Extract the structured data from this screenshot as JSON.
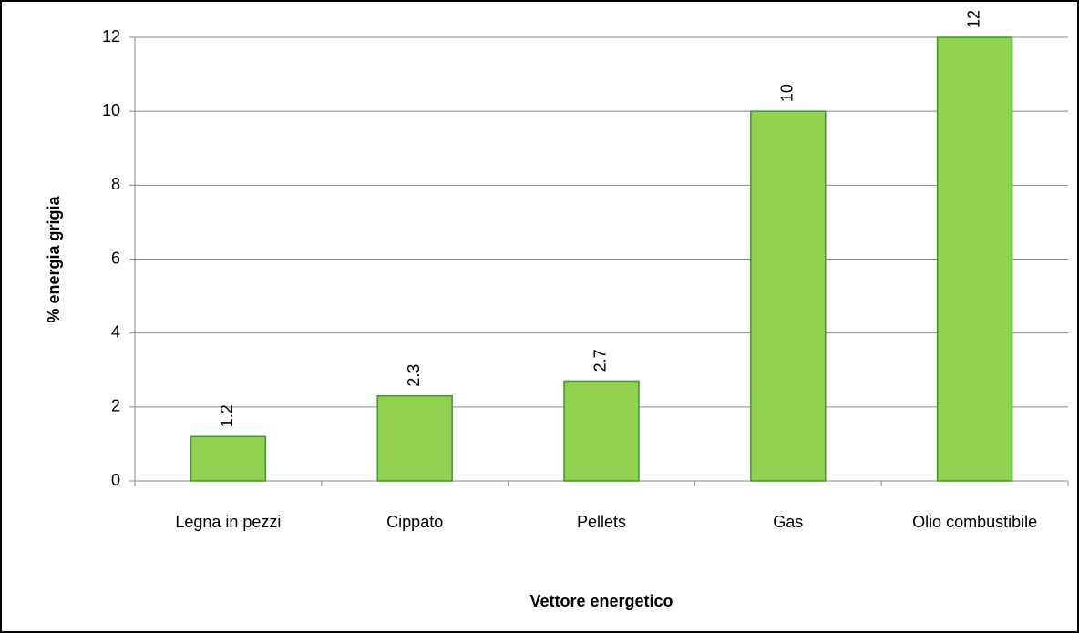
{
  "chart_data": {
    "type": "bar",
    "categories": [
      "Legna in pezzi",
      "Cippato",
      "Pellets",
      "Gas",
      "Olio combustibile"
    ],
    "values": [
      1.2,
      2.3,
      2.7,
      10,
      12
    ],
    "color": "#92d050",
    "edge_color": "#3a9a2a",
    "xlabel": "Vettore energetico",
    "ylabel": "% energia grigia",
    "ylim": [
      0,
      12
    ],
    "yticks": [
      0,
      2,
      4,
      6,
      8,
      10,
      12
    ],
    "grid": true
  }
}
